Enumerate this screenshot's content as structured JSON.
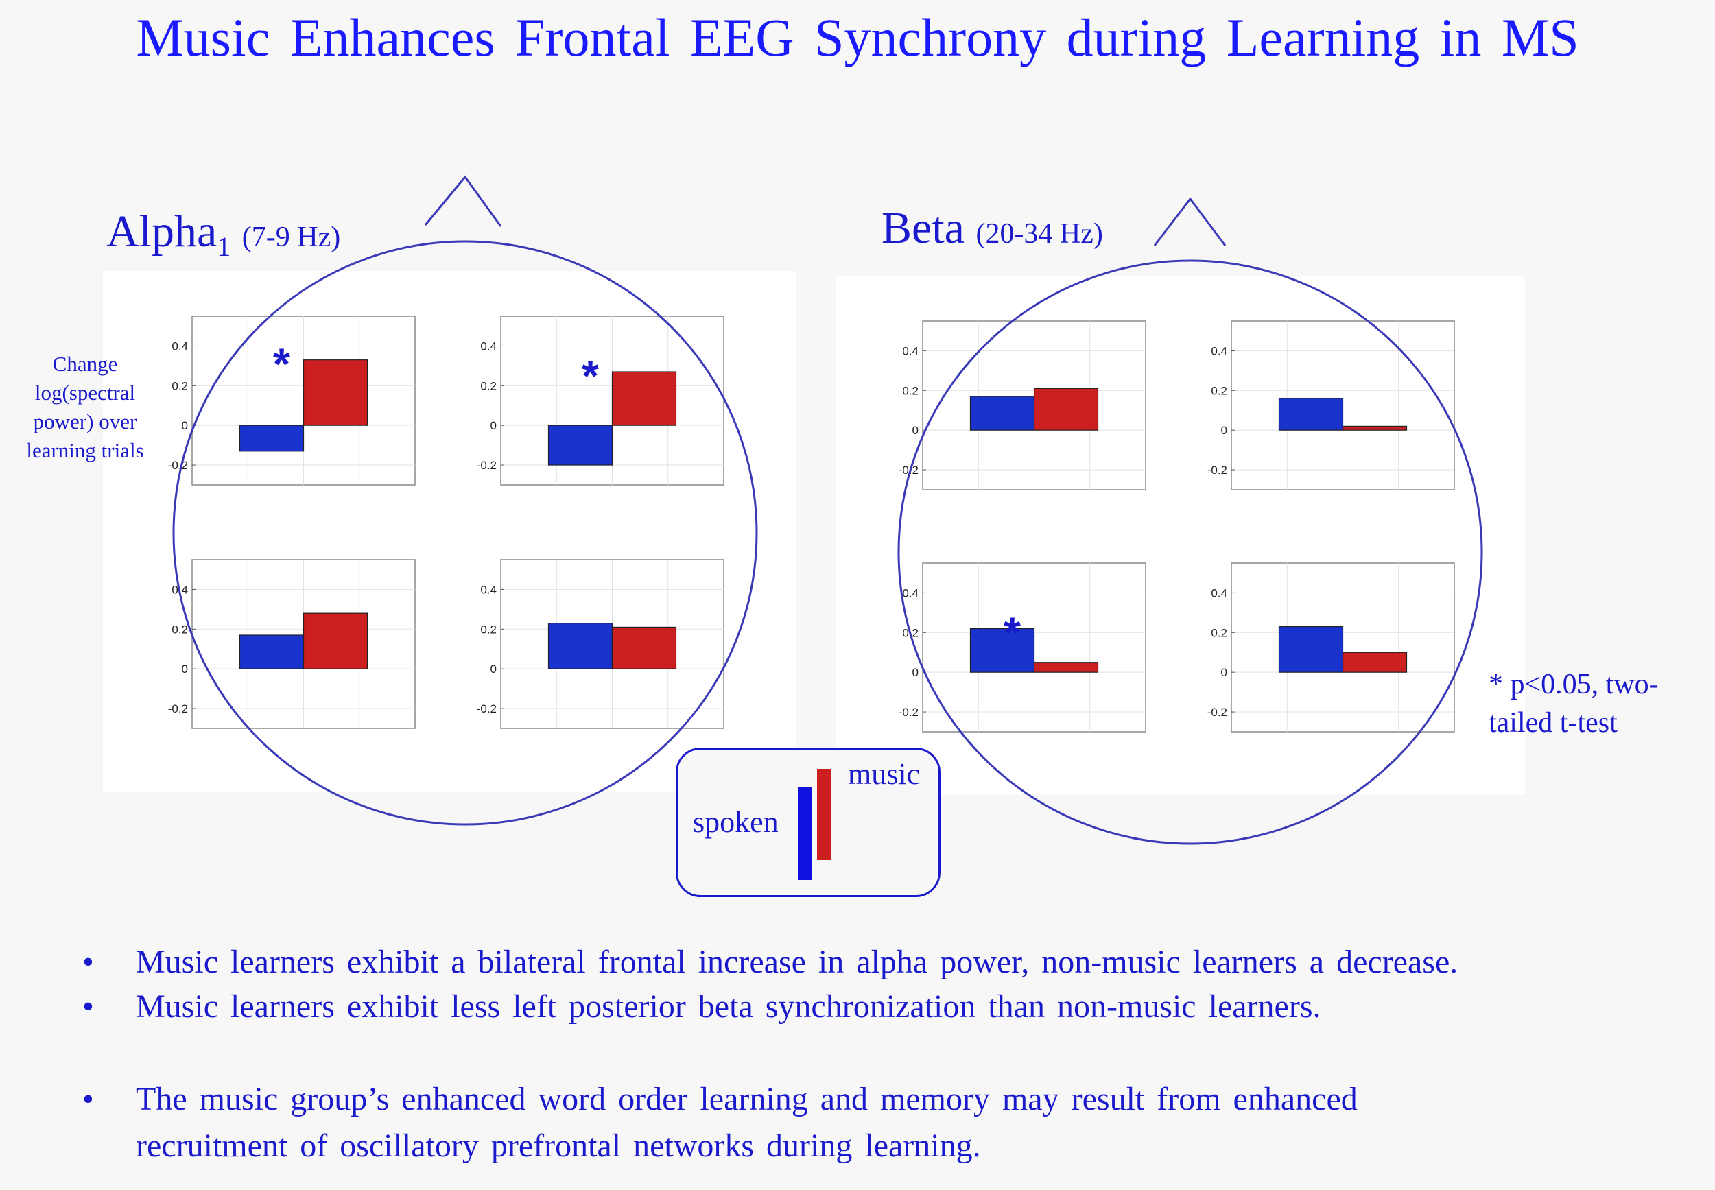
{
  "title": "Music Enhances Frontal EEG Synchrony during Learning in MS",
  "panels": {
    "alpha": {
      "name": "Alpha",
      "subscript": "1",
      "range": "(7-9 Hz)"
    },
    "beta": {
      "name": "Beta",
      "range": "(20-34 Hz)"
    }
  },
  "y_axis_label": "Change log(spectral power) over learning trials",
  "significance_marker": "*",
  "legend": {
    "spoken_label": "spoken",
    "music_label": "music"
  },
  "p_note": "* p<0.05, two-tailed t-test",
  "bullets": [
    "Music learners exhibit a bilateral frontal increase in alpha power, non-music learners a decrease.",
    "Music learners exhibit less left posterior beta synchronization  than non-music learners.",
    "The music group’s enhanced  word order learning and memory may result from enhanced",
    "recruitment of oscillatory prefrontal networks during learning."
  ],
  "colors": {
    "spoken": "#1a33cc",
    "music": "#cc1f1f",
    "accent": "#1a1acc"
  },
  "chart_data": [
    {
      "type": "bar",
      "band": "Alpha1",
      "position": "left-frontal",
      "categories": [
        "spoken",
        "music"
      ],
      "values": [
        -0.13,
        0.33
      ],
      "ylim": [
        -0.3,
        0.55
      ],
      "yticks": [
        -0.2,
        0,
        0.2,
        0.4
      ],
      "significant": true
    },
    {
      "type": "bar",
      "band": "Alpha1",
      "position": "right-frontal",
      "categories": [
        "spoken",
        "music"
      ],
      "values": [
        -0.2,
        0.27
      ],
      "ylim": [
        -0.3,
        0.55
      ],
      "yticks": [
        -0.2,
        0,
        0.2,
        0.4
      ],
      "significant": true
    },
    {
      "type": "bar",
      "band": "Alpha1",
      "position": "left-posterior",
      "categories": [
        "spoken",
        "music"
      ],
      "values": [
        0.17,
        0.28
      ],
      "ylim": [
        -0.3,
        0.55
      ],
      "yticks": [
        -0.2,
        0,
        0.2,
        0.4
      ],
      "significant": false
    },
    {
      "type": "bar",
      "band": "Alpha1",
      "position": "right-posterior",
      "categories": [
        "spoken",
        "music"
      ],
      "values": [
        0.23,
        0.21
      ],
      "ylim": [
        -0.3,
        0.55
      ],
      "yticks": [
        -0.2,
        0,
        0.2,
        0.4
      ],
      "significant": false
    },
    {
      "type": "bar",
      "band": "Beta",
      "position": "left-frontal",
      "categories": [
        "spoken",
        "music"
      ],
      "values": [
        0.17,
        0.21
      ],
      "ylim": [
        -0.3,
        0.55
      ],
      "yticks": [
        -0.2,
        0,
        0.2,
        0.4
      ],
      "significant": false
    },
    {
      "type": "bar",
      "band": "Beta",
      "position": "right-frontal",
      "categories": [
        "spoken",
        "music"
      ],
      "values": [
        0.16,
        0.02
      ],
      "ylim": [
        -0.3,
        0.55
      ],
      "yticks": [
        -0.2,
        0,
        0.2,
        0.4
      ],
      "significant": false
    },
    {
      "type": "bar",
      "band": "Beta",
      "position": "left-posterior",
      "categories": [
        "spoken",
        "music"
      ],
      "values": [
        0.22,
        0.05
      ],
      "ylim": [
        -0.3,
        0.55
      ],
      "yticks": [
        -0.2,
        0,
        0.2,
        0.4
      ],
      "significant": true
    },
    {
      "type": "bar",
      "band": "Beta",
      "position": "right-posterior",
      "categories": [
        "spoken",
        "music"
      ],
      "values": [
        0.23,
        0.1
      ],
      "ylim": [
        -0.3,
        0.55
      ],
      "yticks": [
        -0.2,
        0,
        0.2,
        0.4
      ],
      "significant": false
    }
  ]
}
